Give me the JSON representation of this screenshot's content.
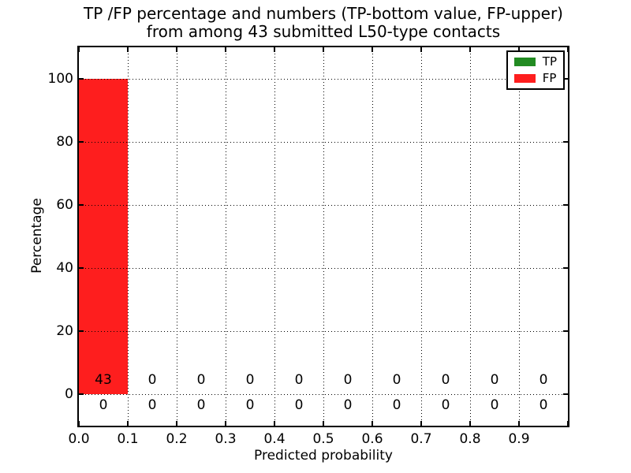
{
  "chart_data": {
    "type": "bar",
    "stacked": true,
    "title_line1": "TP /FP percentage and numbers (TP-bottom value, FP-upper)",
    "title_line2": "from among 43 submitted L50-type contacts",
    "xlabel": "Predicted probability",
    "ylabel": "Percentage",
    "total_contacts": 43,
    "bin_starts": [
      0.0,
      0.1,
      0.2,
      0.3,
      0.4,
      0.5,
      0.6,
      0.7,
      0.8,
      0.9
    ],
    "bin_width": 0.1,
    "series": [
      {
        "name": "TP",
        "color": "#228b22",
        "count_row": "bottom",
        "percent": [
          0,
          0,
          0,
          0,
          0,
          0,
          0,
          0,
          0,
          0
        ],
        "counts": [
          0,
          0,
          0,
          0,
          0,
          0,
          0,
          0,
          0,
          0
        ]
      },
      {
        "name": "FP",
        "color": "#fe1e1e",
        "count_row": "upper",
        "percent": [
          100,
          0,
          0,
          0,
          0,
          0,
          0,
          0,
          0,
          0
        ],
        "counts": [
          43,
          0,
          0,
          0,
          0,
          0,
          0,
          0,
          0,
          0
        ]
      }
    ],
    "xlim": [
      0.0,
      1.0
    ],
    "ylim": [
      -10,
      110
    ],
    "yticks": [
      0,
      20,
      40,
      60,
      80,
      100
    ],
    "ytick_labels": [
      "0",
      "20",
      "40",
      "60",
      "80",
      "100"
    ],
    "xtick_labels": [
      "0.0",
      "0.1",
      "0.2",
      "0.3",
      "0.4",
      "0.5",
      "0.6",
      "0.7",
      "0.8",
      "0.9"
    ],
    "grid": "dotted",
    "legend_position": "upper right"
  }
}
